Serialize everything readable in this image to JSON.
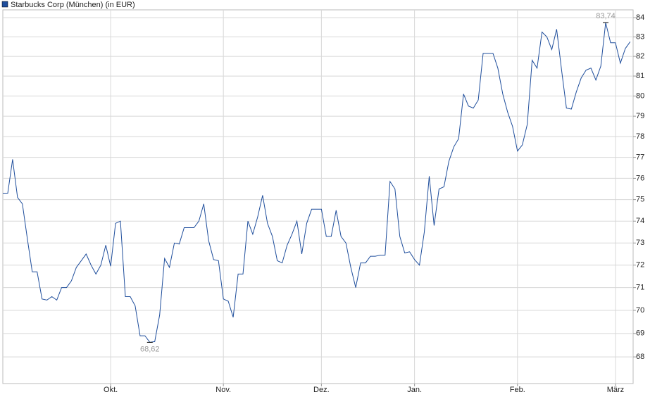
{
  "chart_data": {
    "type": "line",
    "series": [
      {
        "name": "Starbucks Corp (München) (in EUR)",
        "color": "#1f4e9c",
        "values": [
          75.3,
          75.3,
          76.9,
          75.1,
          74.8,
          73.2,
          71.7,
          71.7,
          70.5,
          70.45,
          70.6,
          70.45,
          71.0,
          71.0,
          71.3,
          71.9,
          72.2,
          72.5,
          72.0,
          71.6,
          72.0,
          72.9,
          71.95,
          73.9,
          74.0,
          70.6,
          70.6,
          70.2,
          68.9,
          68.9,
          68.62,
          68.65,
          69.8,
          72.3,
          71.9,
          73.0,
          72.95,
          73.7,
          73.7,
          73.7,
          74.0,
          74.8,
          73.1,
          72.25,
          72.2,
          70.5,
          70.4,
          69.7,
          71.6,
          71.6,
          74.0,
          73.4,
          74.2,
          75.2,
          73.9,
          73.3,
          72.2,
          72.1,
          72.9,
          73.4,
          74.0,
          72.5,
          73.9,
          74.55,
          74.55,
          74.55,
          73.3,
          73.3,
          74.5,
          73.3,
          73.0,
          71.9,
          71.0,
          72.1,
          72.1,
          72.4,
          72.4,
          72.45,
          72.45,
          75.85,
          75.5,
          73.3,
          72.55,
          72.6,
          72.25,
          72.0,
          73.5,
          76.1,
          73.8,
          75.5,
          75.6,
          76.8,
          77.5,
          77.9,
          80.1,
          79.5,
          79.4,
          79.8,
          82.15,
          82.15,
          82.15,
          81.4,
          80.1,
          79.2,
          78.5,
          77.3,
          77.6,
          78.6,
          81.8,
          81.4,
          83.25,
          83.0,
          82.35,
          83.4,
          81.3,
          79.4,
          79.35,
          80.2,
          80.9,
          81.3,
          81.4,
          80.8,
          81.5,
          83.74,
          82.7,
          82.7,
          81.65,
          82.4,
          82.75
        ]
      }
    ],
    "xlim": [
      0,
      128.6
    ],
    "xticks": [
      {
        "value": 22,
        "label": "Okt."
      },
      {
        "value": 45,
        "label": "Nov."
      },
      {
        "value": 65,
        "label": "Dez."
      },
      {
        "value": 84,
        "label": "Jan."
      },
      {
        "value": 105,
        "label": "Feb."
      },
      {
        "value": 125,
        "label": "März"
      }
    ],
    "ylim": [
      66.88,
      84.41
    ],
    "yticks": [
      68,
      69,
      70,
      71,
      72,
      73,
      74,
      75,
      76,
      77,
      78,
      79,
      80,
      81,
      82,
      83,
      84
    ],
    "log_scale": true,
    "grid": true,
    "legend": "top-left",
    "annotations": [
      {
        "x": 123,
        "y": 83.74,
        "label": "83,74"
      },
      {
        "x": 30,
        "y": 68.62,
        "label": "68,62"
      }
    ]
  }
}
